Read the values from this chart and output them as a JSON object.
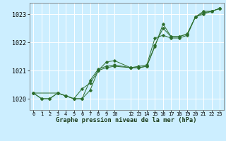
{
  "title": "Graphe pression niveau de la mer (hPa)",
  "background_color": "#cceeff",
  "grid_color": "#ffffff",
  "line_color": "#2d6e2d",
  "series1": {
    "x": [
      0,
      1,
      2,
      3,
      4,
      5,
      6,
      7,
      8,
      9,
      10,
      12,
      13,
      14,
      15,
      16,
      17,
      18,
      19,
      20,
      21,
      22,
      23
    ],
    "y": [
      1020.2,
      1020.0,
      1020.0,
      1020.2,
      1020.1,
      1020.0,
      1020.0,
      1020.3,
      1021.0,
      1021.1,
      1021.15,
      1021.1,
      1021.1,
      1021.15,
      1021.9,
      1022.5,
      1022.2,
      1022.2,
      1022.3,
      1022.9,
      1023.1,
      1023.1,
      1023.2
    ]
  },
  "series2": {
    "x": [
      0,
      1,
      2,
      3,
      4,
      5,
      6,
      7,
      8,
      9,
      10,
      12,
      13,
      14,
      15,
      16,
      17,
      18,
      19,
      20,
      21,
      22,
      23
    ],
    "y": [
      1020.2,
      1020.0,
      1020.0,
      1020.2,
      1020.1,
      1020.0,
      1020.0,
      1020.65,
      1021.05,
      1021.15,
      1021.2,
      1021.1,
      1021.15,
      1021.2,
      1022.15,
      1022.25,
      1022.15,
      1022.15,
      1022.25,
      1022.9,
      1023.05,
      1023.1,
      1023.2
    ]
  },
  "series3": {
    "x": [
      0,
      3,
      4,
      5,
      6,
      7,
      8,
      9,
      10,
      12,
      13,
      14,
      15,
      16,
      17,
      18,
      19,
      20,
      21,
      22,
      23
    ],
    "y": [
      1020.2,
      1020.2,
      1020.1,
      1020.0,
      1020.35,
      1020.55,
      1021.0,
      1021.3,
      1021.35,
      1021.1,
      1021.1,
      1021.15,
      1021.85,
      1022.65,
      1022.2,
      1022.2,
      1022.3,
      1022.9,
      1023.0,
      1023.1,
      1023.2
    ]
  },
  "ylim": [
    1019.6,
    1023.4
  ],
  "yticks": [
    1020,
    1021,
    1022,
    1023
  ],
  "xtick_positions": [
    0,
    1,
    2,
    3,
    4,
    5,
    6,
    7,
    8,
    9,
    10,
    12,
    13,
    14,
    15,
    16,
    17,
    18,
    19,
    20,
    21,
    22,
    23
  ],
  "xtick_labels": [
    "0",
    "1",
    "2",
    "3",
    "4",
    "5",
    "6",
    "7",
    "8",
    "9",
    "10",
    "12",
    "13",
    "14",
    "15",
    "16",
    "17",
    "18",
    "19",
    "20",
    "21",
    "22",
    "23"
  ],
  "xlim": [
    -0.5,
    23.5
  ]
}
